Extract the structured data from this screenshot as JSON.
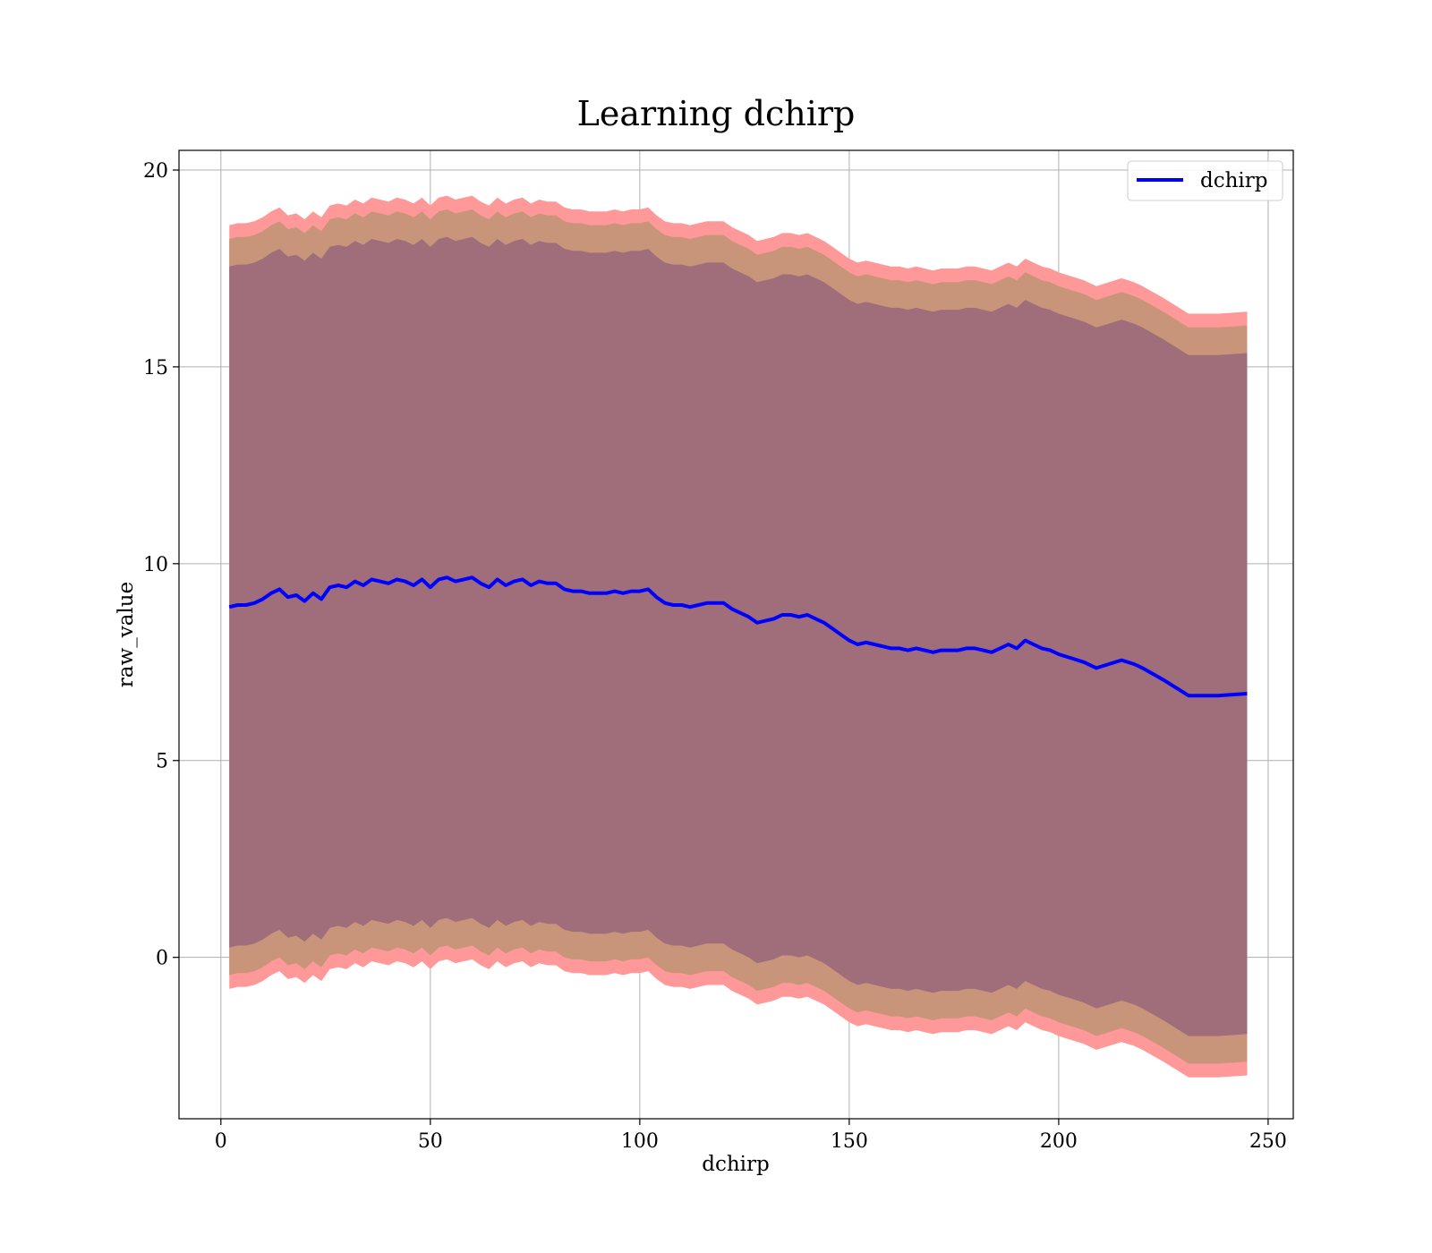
{
  "chart_data": {
    "type": "area",
    "title": "Learning dchirp",
    "xlabel": "dchirp",
    "ylabel": "raw_value",
    "xlim": [
      -10,
      256
    ],
    "ylim": [
      -4.1,
      20.5
    ],
    "x_ticks": [
      "0",
      "50",
      "100",
      "150",
      "200",
      "250"
    ],
    "y_ticks": [
      "0",
      "5",
      "10",
      "15",
      "20"
    ],
    "grid": true,
    "legend": {
      "position": "top-right",
      "entries": [
        "dchirp"
      ]
    },
    "colors": {
      "line": "#0000ff",
      "band_outer": "#ff9999",
      "band_mid": "#c8957a",
      "band_inner": "#a06e7a"
    },
    "series": [
      {
        "name": "dchirp",
        "x": [
          2,
          4,
          6,
          8,
          10,
          12,
          14,
          16,
          18,
          20,
          22,
          24,
          26,
          28,
          30,
          32,
          34,
          36,
          38,
          40,
          42,
          44,
          46,
          48,
          50,
          52,
          54,
          56,
          58,
          60,
          62,
          64,
          66,
          68,
          70,
          72,
          74,
          76,
          78,
          80,
          82,
          84,
          86,
          88,
          90,
          92,
          94,
          96,
          98,
          100,
          102,
          104,
          106,
          108,
          110,
          112,
          114,
          116,
          118,
          120,
          122,
          124,
          126,
          128,
          130,
          132,
          134,
          136,
          138,
          140,
          142,
          144,
          146,
          148,
          150,
          152,
          154,
          156,
          158,
          160,
          162,
          164,
          166,
          168,
          170,
          172,
          174,
          176,
          178,
          180,
          182,
          184,
          186,
          188,
          190,
          192,
          194,
          196,
          198,
          200,
          203,
          206,
          209,
          212,
          215,
          218,
          220,
          225,
          231,
          238,
          245
        ],
        "values": [
          8.9,
          8.95,
          8.95,
          9.0,
          9.1,
          9.25,
          9.35,
          9.15,
          9.2,
          9.05,
          9.25,
          9.1,
          9.4,
          9.45,
          9.4,
          9.55,
          9.45,
          9.6,
          9.55,
          9.5,
          9.6,
          9.55,
          9.45,
          9.6,
          9.4,
          9.6,
          9.65,
          9.55,
          9.6,
          9.65,
          9.5,
          9.4,
          9.6,
          9.45,
          9.55,
          9.6,
          9.45,
          9.55,
          9.5,
          9.5,
          9.35,
          9.3,
          9.3,
          9.25,
          9.25,
          9.25,
          9.3,
          9.25,
          9.3,
          9.3,
          9.35,
          9.15,
          9.0,
          8.95,
          8.95,
          8.9,
          8.95,
          9.0,
          9.0,
          9.0,
          8.85,
          8.75,
          8.65,
          8.5,
          8.55,
          8.6,
          8.7,
          8.7,
          8.65,
          8.7,
          8.6,
          8.5,
          8.35,
          8.2,
          8.05,
          7.95,
          8.0,
          7.95,
          7.9,
          7.85,
          7.85,
          7.8,
          7.85,
          7.8,
          7.75,
          7.8,
          7.8,
          7.8,
          7.85,
          7.85,
          7.8,
          7.75,
          7.85,
          7.95,
          7.85,
          8.05,
          7.95,
          7.85,
          7.8,
          7.7,
          7.6,
          7.5,
          7.35,
          7.45,
          7.55,
          7.45,
          7.35,
          7.05,
          6.65,
          6.65,
          6.7
        ]
      }
    ],
    "bands": [
      {
        "role": "outer",
        "offset": 9.7
      },
      {
        "role": "mid",
        "offset": 9.35
      },
      {
        "role": "inner",
        "offset": 8.65
      }
    ]
  }
}
